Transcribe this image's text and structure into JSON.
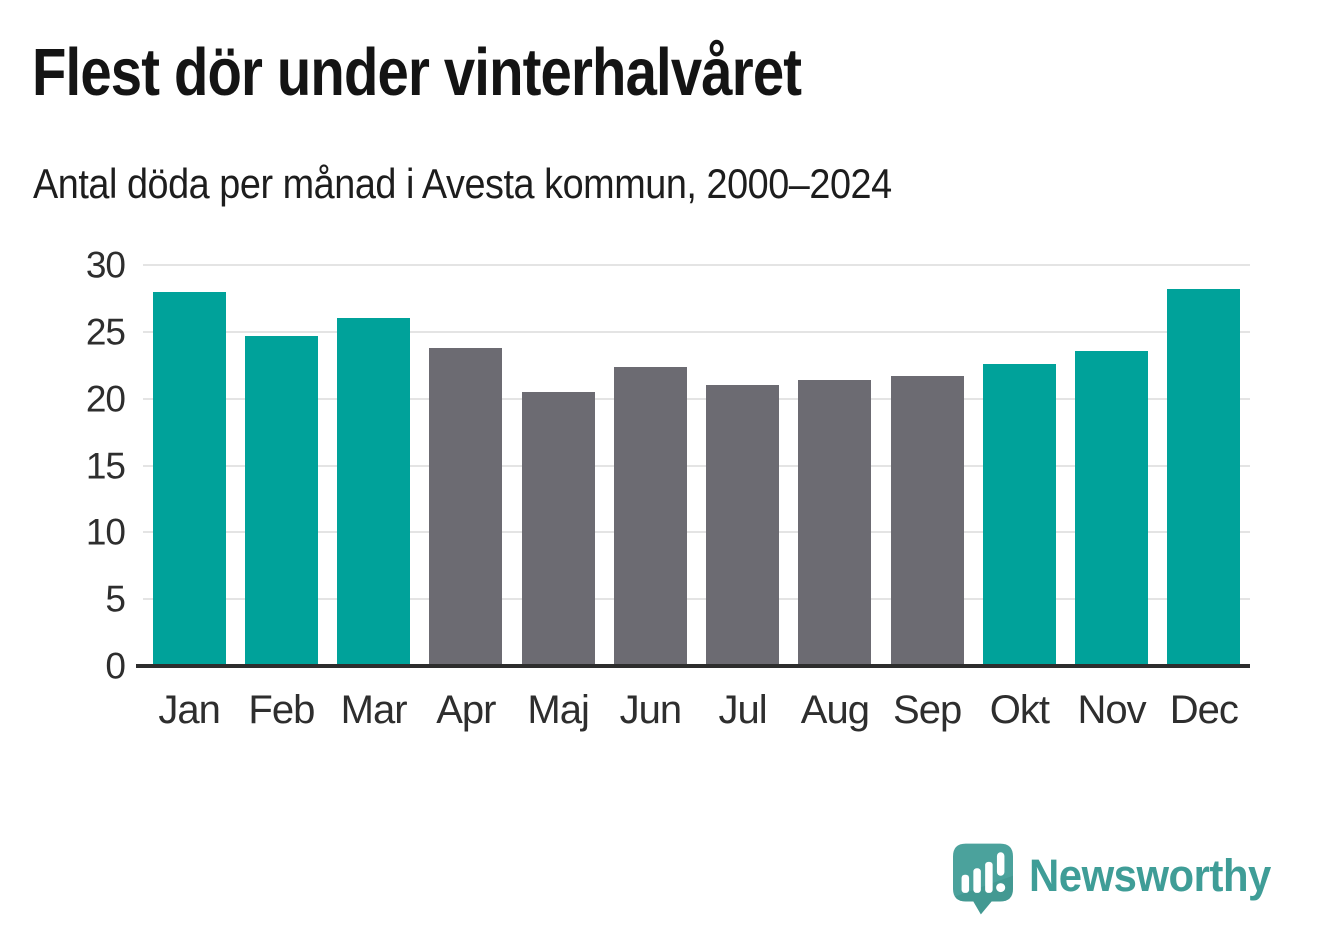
{
  "header": {
    "title": "Flest dör under vinterhalvåret",
    "subtitle": "Antal döda per månad i Avesta kommun, 2000–2024"
  },
  "chart_data": {
    "type": "bar",
    "title": "Flest dör under vinterhalvåret",
    "subtitle": "Antal döda per månad i Avesta kommun, 2000–2024",
    "categories": [
      "Jan",
      "Feb",
      "Mar",
      "Apr",
      "Maj",
      "Jun",
      "Jul",
      "Aug",
      "Sep",
      "Okt",
      "Nov",
      "Dec"
    ],
    "values": [
      28.0,
      24.7,
      26.0,
      23.8,
      20.5,
      22.4,
      21.0,
      21.4,
      21.7,
      22.6,
      23.6,
      28.2
    ],
    "highlighted": [
      true,
      true,
      true,
      false,
      false,
      false,
      false,
      false,
      false,
      true,
      true,
      true
    ],
    "xlabel": "",
    "ylabel": "",
    "ylim": [
      0,
      30
    ],
    "yticks": [
      0,
      5,
      10,
      15,
      20,
      25,
      30
    ],
    "grid": "horizontal",
    "legend": false,
    "colors": {
      "highlight": "#00a29a",
      "default": "#6c6b72",
      "gridline": "#e4e4e4",
      "baseline": "#2d2d2d",
      "tick_text": "#2e2e2e"
    }
  },
  "branding": {
    "logo_text": "Newsworthy",
    "logo_color": "#3f9d97",
    "logo_icon": "newsworthy-speech-bubble-chart-icon"
  }
}
